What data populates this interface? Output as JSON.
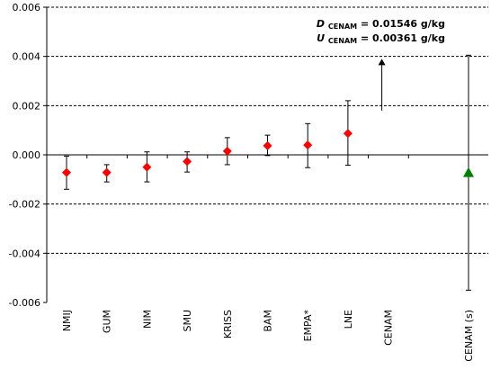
{
  "chart_data": {
    "type": "scatter",
    "title": "",
    "xlabel": "",
    "ylabel": "",
    "ylim": [
      -0.006,
      0.006
    ],
    "yticks": [
      "0.006",
      "0.004",
      "0.002",
      "0.000",
      "-0.002",
      "-0.004",
      "-0.006"
    ],
    "ytick_values": [
      0.006,
      0.004,
      0.002,
      0.0,
      -0.002,
      -0.004,
      -0.006
    ],
    "grid": "horizontal dashed",
    "categories": [
      "NMIJ",
      "GUM",
      "NIM",
      "SMU",
      "KRISS",
      "BAM",
      "EMPA*",
      "LNE",
      "CENAM",
      "CENAM (s)"
    ],
    "points": [
      {
        "category": "NMIJ",
        "y": -0.00072,
        "err_low": -0.0014,
        "err_high": -5e-05,
        "marker": "diamond",
        "color": "#ff0000"
      },
      {
        "category": "GUM",
        "y": -0.00072,
        "err_low": -0.0011,
        "err_high": -0.0004,
        "marker": "diamond",
        "color": "#ff0000"
      },
      {
        "category": "NIM",
        "y": -0.0005,
        "err_low": -0.0011,
        "err_high": 0.00012,
        "marker": "diamond",
        "color": "#ff0000"
      },
      {
        "category": "SMU",
        "y": -0.00027,
        "err_low": -0.0007,
        "err_high": 0.00012,
        "marker": "diamond",
        "color": "#ff0000"
      },
      {
        "category": "KRISS",
        "y": 0.00015,
        "err_low": -0.0004,
        "err_high": 0.0007,
        "marker": "diamond",
        "color": "#ff0000"
      },
      {
        "category": "BAM",
        "y": 0.00037,
        "err_low": -3e-05,
        "err_high": 0.0008,
        "marker": "diamond",
        "color": "#ff0000"
      },
      {
        "category": "EMPA*",
        "y": 0.0004,
        "err_low": -0.00052,
        "err_high": 0.00127,
        "marker": "diamond",
        "color": "#ff0000"
      },
      {
        "category": "LNE",
        "y": 0.00087,
        "err_low": -0.00042,
        "err_high": 0.0022,
        "marker": "diamond",
        "color": "#ff0000"
      },
      {
        "category": "CENAM (s)",
        "y": -0.00072,
        "err_low": -0.0055,
        "err_high": 0.00405,
        "marker": "triangle",
        "color": "#008000"
      }
    ],
    "off_scale_arrow": {
      "category": "CENAM",
      "from": 0.0018,
      "to": 0.0039,
      "color": "#000000"
    },
    "annotation": {
      "d_symbol": "D",
      "u_symbol": "U",
      "subscript": "CENAM",
      "d_value": " = 0.01546 g/kg",
      "u_value": " = 0.00361 g/kg"
    }
  }
}
